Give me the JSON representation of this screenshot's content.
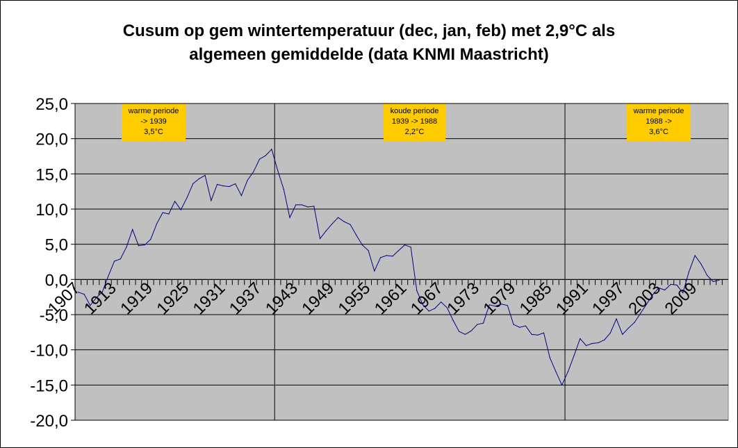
{
  "chart_data": {
    "type": "line",
    "title_lines": [
      "Cusum op gem wintertemperatuur (dec, jan, feb) met 2,9°C als",
      "algemeen gemiddelde (data KNMI Maastricht)"
    ],
    "xlabel": "",
    "ylabel": "",
    "ylim": [
      -20,
      25
    ],
    "yticks": [
      "25,0",
      "20,0",
      "15,0",
      "10,0",
      "5,0",
      "0,0",
      "-5,0",
      "-10,0",
      "-15,0",
      "-20,0"
    ],
    "x_start": 1907,
    "x_end": 2014,
    "xtick_labels": [
      "1907",
      "1913",
      "1919",
      "1925",
      "1931",
      "1937",
      "1943",
      "1949",
      "1955",
      "1961",
      "1967",
      "1973",
      "1979",
      "1985",
      "1991",
      "1997",
      "2003",
      "2009"
    ],
    "grid": true,
    "background": "#c0c0c0",
    "line_color": "#000080",
    "dividers": [
      1940,
      1988
    ],
    "series": [
      {
        "values": [
          -1.8,
          -2.1,
          -3.7,
          -2.6,
          -1.8,
          0.5,
          2.6,
          2.9,
          4.6,
          7.1,
          4.8,
          4.9,
          5.7,
          7.9,
          9.5,
          9.3,
          11.1,
          9.9,
          11.6,
          13.6,
          14.3,
          14.8,
          11.2,
          13.5,
          13.3,
          13.2,
          13.6,
          11.9,
          14.1,
          15.3,
          17.1,
          17.6,
          18.5,
          15.5,
          12.8,
          8.8,
          10.6,
          10.6,
          10.3,
          10.4,
          5.8,
          6.9,
          7.9,
          8.8,
          8.2,
          7.8,
          6.3,
          4.9,
          4.1,
          1.2,
          3.1,
          3.4,
          3.3,
          4.1,
          4.9,
          4.6,
          -1.6,
          -3.6,
          -4.5,
          -4.1,
          -3.2,
          -4.0,
          -5.8,
          -7.4,
          -7.8,
          -7.3,
          -6.4,
          -6.2,
          -3.6,
          -3.8,
          -3.5,
          -3.7,
          -6.4,
          -6.8,
          -6.6,
          -7.8,
          -7.9,
          -7.6,
          -11.1,
          -13.1,
          -15.0,
          -13.1,
          -10.8,
          -8.4,
          -9.4,
          -9.1,
          -9.0,
          -8.6,
          -7.6,
          -5.6,
          -7.8,
          -6.9,
          -6.1,
          -4.8,
          -3.5,
          -2.2,
          -1.2,
          -1.5,
          -0.7,
          -0.8,
          -1.9,
          1.1,
          3.4,
          2.2,
          0.6,
          -0.3,
          -0.1
        ]
      }
    ],
    "annotations": [
      {
        "lines": [
          "warme periode",
          "-> 1939",
          "3,5°C"
        ]
      },
      {
        "lines": [
          "koude periode",
          "1939 -> 1988",
          "2,2°C"
        ]
      },
      {
        "lines": [
          "warme periode",
          "1988 ->",
          "3,6°C"
        ]
      }
    ],
    "annotation_color": "#ffcc00"
  }
}
